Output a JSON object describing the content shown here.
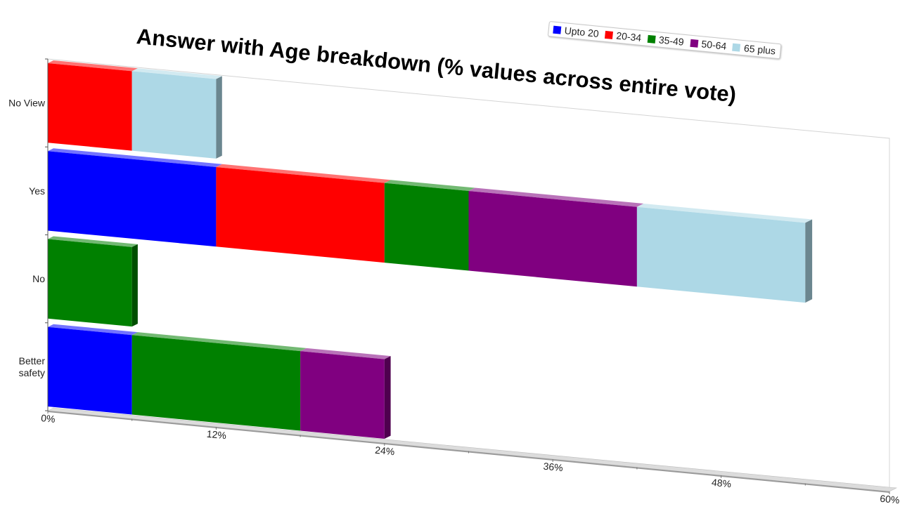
{
  "chart_data": {
    "type": "bar",
    "orientation": "horizontal",
    "stacked": true,
    "title": "Answer with Age breakdown (% values across entire vote)",
    "xlabel": "",
    "ylabel": "",
    "categories": [
      "No View",
      "Yes",
      "No",
      "Better safety"
    ],
    "category_label_lines": [
      [
        "No View"
      ],
      [
        "Yes"
      ],
      [
        "No"
      ],
      [
        "Better",
        "safety"
      ]
    ],
    "xlim": [
      0,
      60
    ],
    "x_ticks": [
      0,
      12,
      24,
      36,
      48,
      60
    ],
    "x_tick_labels": [
      "0%",
      "12%",
      "24%",
      "36%",
      "48%",
      "60%"
    ],
    "series": [
      {
        "name": "Upto 20",
        "color": "#0000ff",
        "values": [
          0,
          12,
          0,
          6
        ]
      },
      {
        "name": "20-34",
        "color": "#ff0000",
        "values": [
          6,
          12,
          0,
          0
        ]
      },
      {
        "name": "35-49",
        "color": "#008000",
        "values": [
          0,
          6,
          6,
          12
        ]
      },
      {
        "name": "50-64",
        "color": "#800080",
        "values": [
          0,
          12,
          0,
          6
        ]
      },
      {
        "name": "65 plus",
        "color": "#add8e6",
        "values": [
          6,
          12,
          0,
          0
        ]
      }
    ],
    "legend_position": "top-right",
    "grid": false,
    "style": "3d"
  }
}
